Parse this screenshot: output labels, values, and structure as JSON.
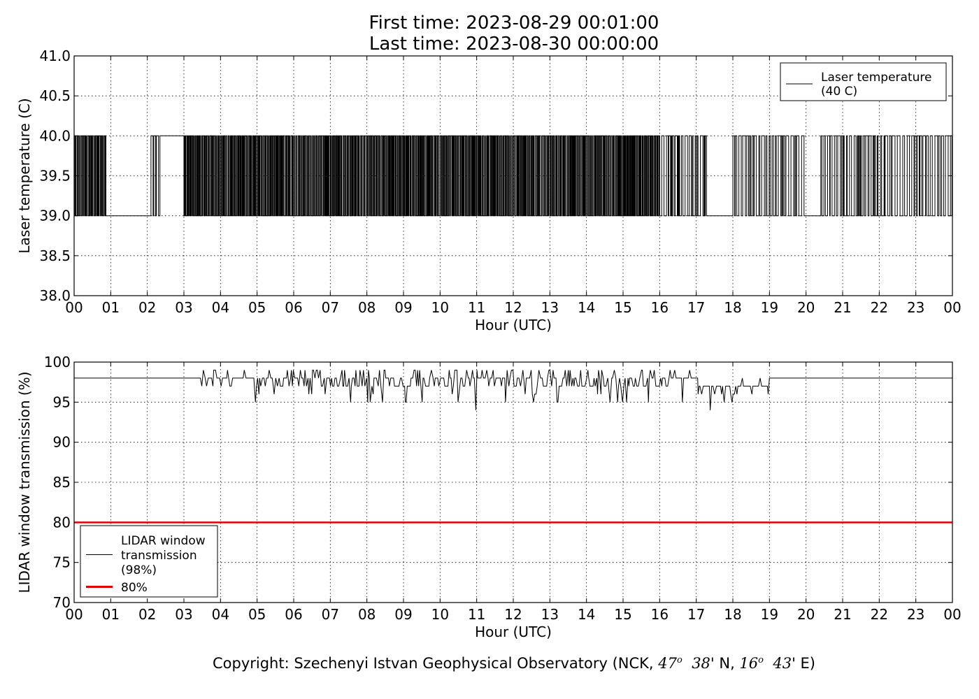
{
  "header": {
    "first_time": "First time: 2023-08-29 00:01:00",
    "last_time": "Last time: 2023-08-30 00:00:00"
  },
  "footer": {
    "prefix": "Copyright: Szechenyi Istvan Geophysical Observatory (NCK, ",
    "lat_deg": "47",
    "lat_min": "38",
    "lat_dir": "' N, ",
    "lon_deg": "16",
    "lon_min": "43",
    "lon_dir": "' E)",
    "degree_mark": "o"
  },
  "chart_data": [
    {
      "id": "laser",
      "type": "line",
      "xlabel": "Hour (UTC)",
      "ylabel": "Laser temperature (C)",
      "xlim": [
        0,
        24
      ],
      "ylim": [
        38.0,
        41.0
      ],
      "xticks": [
        0,
        1,
        2,
        3,
        4,
        5,
        6,
        7,
        8,
        9,
        10,
        11,
        12,
        13,
        14,
        15,
        16,
        17,
        18,
        19,
        20,
        21,
        22,
        23,
        24
      ],
      "xticklabels": [
        "00",
        "01",
        "02",
        "03",
        "04",
        "05",
        "06",
        "07",
        "08",
        "09",
        "10",
        "11",
        "12",
        "13",
        "14",
        "15",
        "16",
        "17",
        "18",
        "19",
        "20",
        "21",
        "22",
        "23",
        "00"
      ],
      "yticks": [
        38.0,
        38.5,
        39.0,
        39.5,
        40.0,
        40.5,
        41.0
      ],
      "yticklabels": [
        "38.0",
        "38.5",
        "39.0",
        "39.5",
        "40.0",
        "40.5",
        "41.0"
      ],
      "grid": true,
      "legend": {
        "position": "top-right",
        "entries": [
          {
            "label": "Laser temperature\n(40 C)",
            "color": "#000000",
            "width": 1
          }
        ]
      },
      "series": [
        {
          "name": "Laser temperature\n(40 C)",
          "color": "#000000",
          "kind": "binary-toggle",
          "low_value": 39.0,
          "high_value": 40.0,
          "note_units": "hours (UTC)",
          "stable_high_periods": [
            [
              2.35,
              3.0
            ]
          ],
          "stable_low_periods": [
            [
              0.85,
              1.1
            ],
            [
              1.15,
              1.45
            ],
            [
              1.5,
              2.1
            ],
            [
              17.3,
              18.0
            ],
            [
              19.9,
              20.35
            ]
          ],
          "gap_periods": [
            [
              2.35,
              3.0
            ]
          ],
          "toggle_density": [
            [
              0.0,
              0.85,
              "high"
            ],
            [
              0.85,
              2.1,
              "sparse"
            ],
            [
              2.1,
              2.35,
              "medium"
            ],
            [
              3.0,
              16.0,
              "high"
            ],
            [
              16.0,
              17.3,
              "medium"
            ],
            [
              18.0,
              19.9,
              "medium"
            ],
            [
              20.35,
              24.0,
              "medium"
            ]
          ]
        }
      ]
    },
    {
      "id": "lidar",
      "type": "line",
      "xlabel": "Hour (UTC)",
      "ylabel": "LIDAR window transmission (%)",
      "xlim": [
        0,
        24
      ],
      "ylim": [
        70,
        100
      ],
      "xticks": [
        0,
        1,
        2,
        3,
        4,
        5,
        6,
        7,
        8,
        9,
        10,
        11,
        12,
        13,
        14,
        15,
        16,
        17,
        18,
        19,
        20,
        21,
        22,
        23,
        24
      ],
      "xticklabels": [
        "00",
        "01",
        "02",
        "03",
        "04",
        "05",
        "06",
        "07",
        "08",
        "09",
        "10",
        "11",
        "12",
        "13",
        "14",
        "15",
        "16",
        "17",
        "18",
        "19",
        "20",
        "21",
        "22",
        "23",
        "00"
      ],
      "yticks": [
        70,
        75,
        80,
        85,
        90,
        95,
        100
      ],
      "yticklabels": [
        "70",
        "75",
        "80",
        "85",
        "90",
        "95",
        "100"
      ],
      "grid": true,
      "legend": {
        "position": "lower-left",
        "entries": [
          {
            "label": "LIDAR window\ntransmission\n(98%)",
            "color": "#000000",
            "width": 1
          },
          {
            "label": "80%",
            "color": "#e00000",
            "width": 3
          }
        ]
      },
      "series": [
        {
          "name": "LIDAR window\ntransmission\n(98%)",
          "color": "#000000",
          "baseline": 98,
          "note_units": "hours (UTC)",
          "segments": [
            [
              0.0,
              3.45,
              "flat",
              98
            ],
            [
              3.45,
              17.05,
              "noisy",
              98
            ],
            [
              17.05,
              19.0,
              "noisy",
              97
            ],
            [
              19.0,
              24.0,
              "flat",
              98
            ]
          ],
          "min_value": 94,
          "min_at_hour": 10.97,
          "max_value": 99
        },
        {
          "name": "80%",
          "color": "#e00000",
          "kind": "threshold",
          "value": 80
        }
      ]
    }
  ]
}
